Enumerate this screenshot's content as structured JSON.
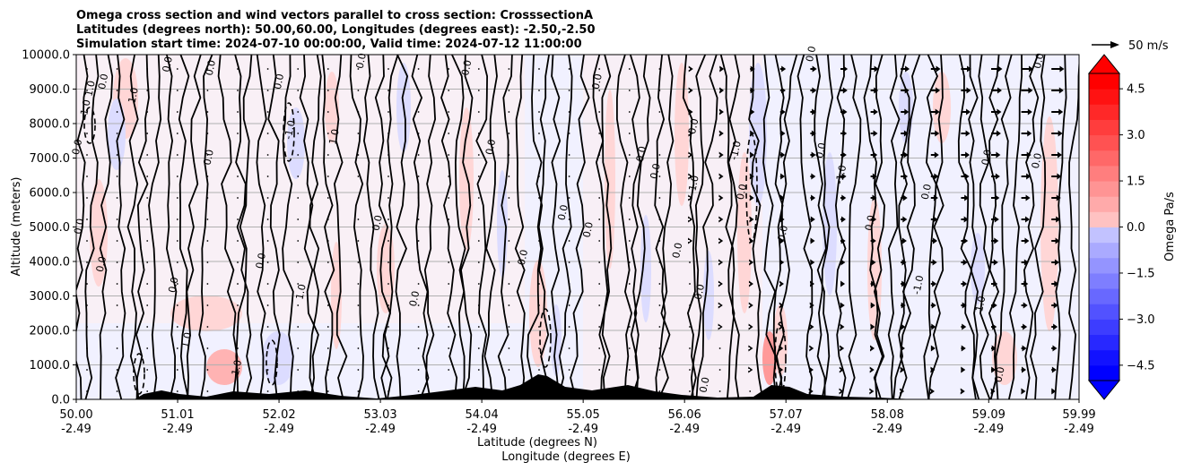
{
  "chart_data": {
    "type": "heatmap",
    "title_lines": [
      "Omega cross section and wind vectors parallel to cross section: CrosssectionA",
      "Latitudes (degrees north): 50.00,60.00, Longitudes (degrees east): -2.50,-2.50",
      "Simulation start time: 2024-07-10 00:00:00, Valid time: 2024-07-12 11:00:00"
    ],
    "x_tick_lat": [
      "50.00",
      "51.01",
      "52.02",
      "53.03",
      "54.04",
      "55.05",
      "56.06",
      "57.07",
      "58.08",
      "59.09",
      "59.99"
    ],
    "x_tick_lon": [
      "-2.49",
      "-2.49",
      "-2.49",
      "-2.49",
      "-2.49",
      "-2.49",
      "-2.49",
      "-2.49",
      "-2.49",
      "-2.49",
      "-2.49"
    ],
    "xlim": [
      50.0,
      59.99
    ],
    "xlabel_lat": "Latitude (degrees N)",
    "xlabel_lon": "Longitude (degrees E)",
    "ylabel": "Altitude (meters)",
    "ylim": [
      0,
      10000
    ],
    "y_ticks": [
      0,
      1000,
      2000,
      3000,
      4000,
      5000,
      6000,
      7000,
      8000,
      9000,
      10000
    ],
    "y_tick_labels": [
      "0.0",
      "1000.0",
      "2000.0",
      "3000.0",
      "4000.0",
      "5000.0",
      "6000.0",
      "7000.0",
      "8000.0",
      "9000.0",
      "10000.0"
    ],
    "grid": "horizontal",
    "colorbar": {
      "label": "Omega Pa/s",
      "min": -5.0,
      "max": 5.0,
      "levels": 20,
      "extend": "both",
      "tick_values": [
        -4.5,
        -3.0,
        -1.5,
        0.0,
        1.5,
        3.0,
        4.5
      ],
      "tick_labels": [
        "−4.5",
        "−3.0",
        "−1.5",
        "0.0",
        "1.5",
        "3.0",
        "4.5"
      ]
    },
    "quiver_key": {
      "label": "50 m/s",
      "speed": 50
    },
    "contour_labels": [
      {
        "text": "0.0",
        "lat": 50.04,
        "alt": 7300
      },
      {
        "text": "0.0",
        "lat": 50.06,
        "alt": 5000
      },
      {
        "text": "-1.0",
        "lat": 50.12,
        "alt": 8400
      },
      {
        "text": "1.0",
        "lat": 50.17,
        "alt": 9000
      },
      {
        "text": "0.0",
        "lat": 50.28,
        "alt": 3900
      },
      {
        "text": "0.0",
        "lat": 50.3,
        "alt": 9200
      },
      {
        "text": "1.0",
        "lat": 50.6,
        "alt": 8800
      },
      {
        "text": "0.0",
        "lat": 50.94,
        "alt": 9700
      },
      {
        "text": "0.0",
        "lat": 51.0,
        "alt": 3300
      },
      {
        "text": "1.0",
        "lat": 51.13,
        "alt": 1700
      },
      {
        "text": "0.0",
        "lat": 51.35,
        "alt": 7000
      },
      {
        "text": "0.0",
        "lat": 51.37,
        "alt": 9600
      },
      {
        "text": "1.0",
        "lat": 51.63,
        "alt": 900
      },
      {
        "text": "0.0",
        "lat": 51.87,
        "alt": 4000
      },
      {
        "text": "-1.0",
        "lat": 52.16,
        "alt": 7800
      },
      {
        "text": "1.0",
        "lat": 52.27,
        "alt": 3100
      },
      {
        "text": "1.0",
        "lat": 52.6,
        "alt": 7600
      },
      {
        "text": "0.0",
        "lat": 52.05,
        "alt": 9200
      },
      {
        "text": "0.0",
        "lat": 52.87,
        "alt": 9800
      },
      {
        "text": "0.0",
        "lat": 53.03,
        "alt": 5100
      },
      {
        "text": "0.0",
        "lat": 53.4,
        "alt": 2900
      },
      {
        "text": "0.0",
        "lat": 53.92,
        "alt": 9600
      },
      {
        "text": "0.0",
        "lat": 54.16,
        "alt": 7300
      },
      {
        "text": "0.0",
        "lat": 54.48,
        "alt": 4100
      },
      {
        "text": "0.0",
        "lat": 54.88,
        "alt": 5400
      },
      {
        "text": "0.0",
        "lat": 55.13,
        "alt": 4900
      },
      {
        "text": "0.0",
        "lat": 55.22,
        "alt": 9200
      },
      {
        "text": "0.0",
        "lat": 55.66,
        "alt": 7100
      },
      {
        "text": "0.0",
        "lat": 55.8,
        "alt": 6600
      },
      {
        "text": "0.0",
        "lat": 56.02,
        "alt": 4300
      },
      {
        "text": "-1.0",
        "lat": 56.18,
        "alt": 6200
      },
      {
        "text": "0.0",
        "lat": 56.18,
        "alt": 7900
      },
      {
        "text": "0.0",
        "lat": 56.24,
        "alt": 3100
      },
      {
        "text": "0.0",
        "lat": 56.29,
        "alt": 400
      },
      {
        "text": "-1.0",
        "lat": 56.6,
        "alt": 7200
      },
      {
        "text": "0.0",
        "lat": 56.66,
        "alt": 6000
      },
      {
        "text": "0.0",
        "lat": 57.07,
        "alt": 4800
      },
      {
        "text": "0.0",
        "lat": 57.35,
        "alt": 10000
      },
      {
        "text": "0.0",
        "lat": 57.45,
        "alt": 7200
      },
      {
        "text": "-1.0",
        "lat": 57.65,
        "alt": 6500
      },
      {
        "text": "0.0",
        "lat": 57.94,
        "alt": 5100
      },
      {
        "text": "-1.0",
        "lat": 58.42,
        "alt": 3300
      },
      {
        "text": "0.0",
        "lat": 58.5,
        "alt": 6000
      },
      {
        "text": "0.0",
        "lat": 59.1,
        "alt": 7000
      },
      {
        "text": "1.0",
        "lat": 59.04,
        "alt": 2750
      },
      {
        "text": "0.0",
        "lat": 59.23,
        "alt": 700
      },
      {
        "text": "0.0",
        "lat": 59.6,
        "alt": 6900
      },
      {
        "text": "0.0",
        "lat": 59.62,
        "alt": 9800
      }
    ]
  }
}
